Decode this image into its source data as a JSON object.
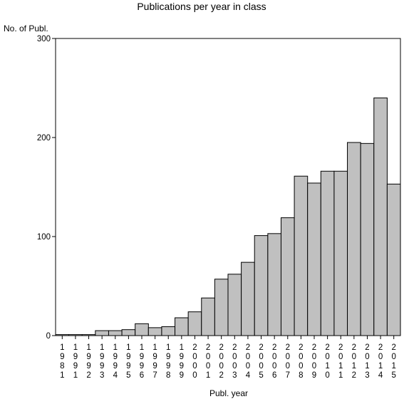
{
  "chart_data": {
    "type": "bar",
    "title": "Publications per year in class",
    "xlabel": "Publ. year",
    "ylabel": "No. of Publ.",
    "ylim": [
      0,
      300
    ],
    "yticks": [
      0,
      100,
      200,
      300
    ],
    "grid": false,
    "categories": [
      "1981",
      "1991",
      "1992",
      "1993",
      "1994",
      "1995",
      "1996",
      "1997",
      "1998",
      "1999",
      "2000",
      "2001",
      "2002",
      "2003",
      "2004",
      "2005",
      "2006",
      "2007",
      "2008",
      "2009",
      "2010",
      "2011",
      "2012",
      "2013",
      "2014",
      "2015"
    ],
    "values": [
      1,
      1,
      1,
      5,
      5,
      6,
      12,
      8,
      9,
      18,
      24,
      38,
      57,
      62,
      74,
      101,
      103,
      119,
      161,
      154,
      166,
      166,
      195,
      194,
      240,
      153
    ],
    "colors": {
      "bar_fill": "#c0c0c0",
      "bar_stroke": "#000000"
    }
  }
}
